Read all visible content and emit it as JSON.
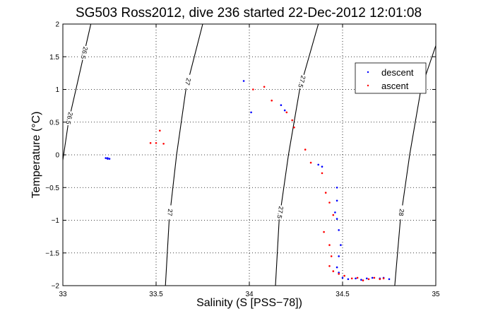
{
  "chart_data": {
    "type": "scatter",
    "title": "SG503 Ross2012, dive 236 started 22-Dec-2012 12:01:08",
    "xlabel": "Salinity (S [PSS−78])",
    "ylabel": "Temperature (°C)",
    "xlim": [
      33,
      35
    ],
    "ylim": [
      -2,
      2
    ],
    "grid": true,
    "legend_position": "top-right",
    "x_ticks": [
      "33",
      "33.5",
      "34",
      "34.5",
      "35"
    ],
    "y_ticks": [
      "−2",
      "−1.5",
      "−1",
      "−0.5",
      "0",
      "0.5",
      "1",
      "1.5",
      "2"
    ],
    "contour_labels": [
      "26.5",
      "27",
      "27.5",
      "28"
    ],
    "contours": [
      {
        "level": 26.5,
        "label": "26.5",
        "points": [
          [
            33.0,
            -0.08
          ],
          [
            33.03,
            0.5
          ],
          [
            33.07,
            1.0
          ],
          [
            33.11,
            1.5
          ],
          [
            33.15,
            2.0
          ]
        ]
      },
      {
        "level": 27,
        "label": "27",
        "points": [
          [
            33.55,
            -2.0
          ],
          [
            33.57,
            -1.0
          ],
          [
            33.61,
            0.0
          ],
          [
            33.66,
            1.0
          ],
          [
            33.75,
            2.0
          ]
        ]
      },
      {
        "level": 27.5,
        "label": "27.5",
        "points": [
          [
            34.14,
            -2.0
          ],
          [
            34.16,
            -1.0
          ],
          [
            34.21,
            0.0
          ],
          [
            34.27,
            1.0
          ],
          [
            34.37,
            2.0
          ]
        ]
      },
      {
        "level": 28,
        "label": "28",
        "points": [
          [
            34.78,
            -2.0
          ],
          [
            34.81,
            -1.0
          ],
          [
            34.86,
            0.0
          ],
          [
            34.92,
            1.0
          ],
          [
            35.0,
            1.67
          ]
        ]
      }
    ],
    "series": [
      {
        "name": "descent",
        "color": "#0000ff",
        "points": [
          [
            33.23,
            -0.05
          ],
          [
            33.24,
            -0.06
          ],
          [
            33.25,
            -0.06
          ],
          [
            33.24,
            -0.05
          ],
          [
            33.97,
            1.13
          ],
          [
            34.01,
            0.65
          ],
          [
            34.17,
            0.76
          ],
          [
            34.19,
            0.68
          ],
          [
            34.37,
            -0.15
          ],
          [
            34.39,
            -0.18
          ],
          [
            34.47,
            -0.5
          ],
          [
            34.47,
            -0.7
          ],
          [
            34.46,
            -0.88
          ],
          [
            34.47,
            -0.98
          ],
          [
            34.48,
            -1.15
          ],
          [
            34.49,
            -1.38
          ],
          [
            34.48,
            -1.55
          ],
          [
            34.47,
            -1.72
          ],
          [
            34.48,
            -1.8
          ],
          [
            34.5,
            -1.88
          ],
          [
            34.53,
            -1.9
          ],
          [
            34.57,
            -1.89
          ],
          [
            34.6,
            -1.91
          ],
          [
            34.63,
            -1.89
          ],
          [
            34.66,
            -1.88
          ],
          [
            34.7,
            -1.89
          ],
          [
            34.72,
            -1.88
          ],
          [
            34.75,
            -1.9
          ]
        ]
      },
      {
        "name": "ascent",
        "color": "#ff0000",
        "points": [
          [
            33.47,
            0.18
          ],
          [
            33.5,
            0.18
          ],
          [
            33.52,
            0.37
          ],
          [
            33.54,
            0.17
          ],
          [
            34.02,
            1.0
          ],
          [
            34.08,
            1.04
          ],
          [
            34.12,
            0.83
          ],
          [
            34.2,
            0.65
          ],
          [
            34.23,
            0.53
          ],
          [
            34.24,
            0.42
          ],
          [
            34.3,
            0.08
          ],
          [
            34.33,
            -0.12
          ],
          [
            34.39,
            -0.28
          ],
          [
            34.41,
            -0.58
          ],
          [
            34.43,
            -0.73
          ],
          [
            34.45,
            -0.92
          ],
          [
            34.4,
            -1.18
          ],
          [
            34.43,
            -1.38
          ],
          [
            34.44,
            -1.55
          ],
          [
            34.43,
            -1.7
          ],
          [
            34.45,
            -1.78
          ],
          [
            34.48,
            -1.82
          ],
          [
            34.51,
            -1.85
          ],
          [
            34.55,
            -1.89
          ],
          [
            34.58,
            -1.88
          ],
          [
            34.61,
            -1.92
          ],
          [
            34.64,
            -1.9
          ],
          [
            34.67,
            -1.88
          ],
          [
            34.7,
            -1.9
          ],
          [
            34.72,
            -1.89
          ]
        ]
      }
    ]
  }
}
